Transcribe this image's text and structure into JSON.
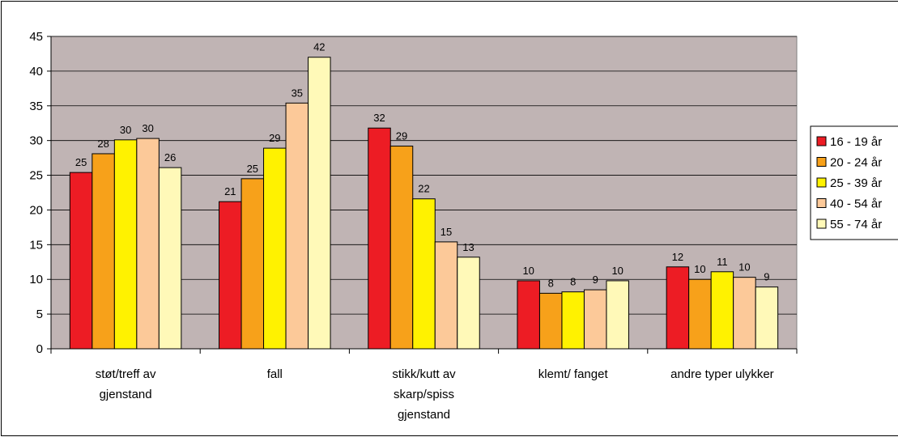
{
  "chart_data": {
    "type": "bar",
    "title": "",
    "xlabel": "",
    "ylabel": "",
    "ylim": [
      0,
      45
    ],
    "yticks": [
      0,
      5,
      10,
      15,
      20,
      25,
      30,
      35,
      40,
      45
    ],
    "grid": true,
    "legend_position": "right",
    "plot_background": "#c0b4b4",
    "categories": [
      [
        "støt/treff av",
        "gjenstand"
      ],
      [
        "fall"
      ],
      [
        "stikk/kutt av",
        "skarp/spiss",
        "gjenstand"
      ],
      [
        "klemt/ fanget"
      ],
      [
        "andre typer ulykker"
      ]
    ],
    "series": [
      {
        "name": "16 - 19 år",
        "color": "#ed1c24",
        "values": [
          25.4,
          21.2,
          31.8,
          9.8,
          11.8
        ],
        "labels": [
          "25",
          "21",
          "32",
          "10",
          "12"
        ]
      },
      {
        "name": "20 - 24 år",
        "color": "#f7a11a",
        "values": [
          28.1,
          24.5,
          29.2,
          8.0,
          10.0
        ],
        "labels": [
          "28",
          "25",
          "29",
          "8",
          "10"
        ]
      },
      {
        "name": "25 - 39 år",
        "color": "#fff200",
        "values": [
          30.1,
          28.9,
          21.6,
          8.2,
          11.1
        ],
        "labels": [
          "30",
          "29",
          "22",
          "8",
          "11"
        ]
      },
      {
        "name": "40 - 54 år",
        "color": "#fcc999",
        "values": [
          30.3,
          35.4,
          15.4,
          8.5,
          10.3
        ],
        "labels": [
          "30",
          "35",
          "15",
          "9",
          "10"
        ]
      },
      {
        "name": "55 - 74 år",
        "color": "#fff9b8",
        "values": [
          26.1,
          42.0,
          13.2,
          9.8,
          8.9
        ],
        "labels": [
          "26",
          "42",
          "13",
          "10",
          "9"
        ]
      }
    ]
  }
}
